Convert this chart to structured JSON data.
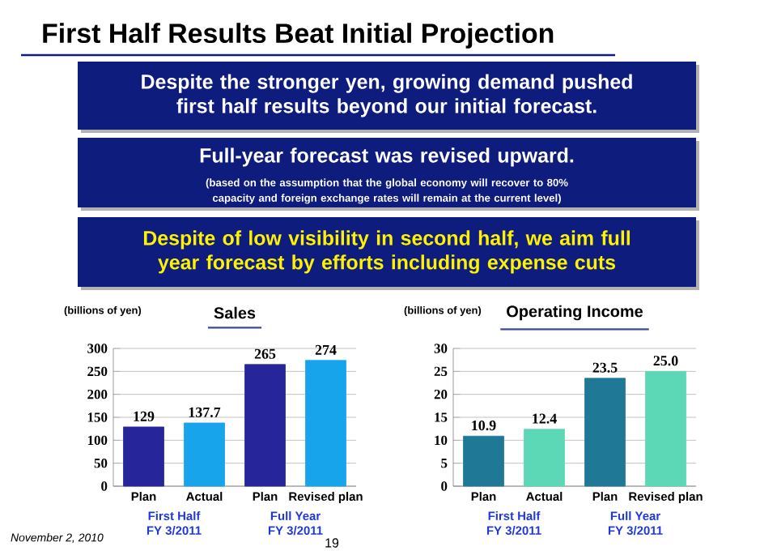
{
  "chart_data": [
    {
      "type": "other",
      "title": "First Half Results Beat Initial Projection",
      "annotations": [
        "Despite the stronger yen, growing demand pushed first half results beyond our initial forecast.",
        "Full-year forecast was revised upward.",
        "(based on the assumption that the global economy will recover to 80% capacity and foreign exchange rates will remain at the current level)",
        "Despite of low visibility in second half, we aim full year forecast by efforts including expense cuts",
        "November 2, 2010",
        "19"
      ]
    },
    {
      "type": "bar",
      "title": "Sales",
      "ylabel": "(billions of yen)",
      "categories": [
        "Plan",
        "Actual",
        "Plan",
        "Revised plan"
      ],
      "values": [
        129,
        137.7,
        265,
        274
      ],
      "colors": [
        "#26269a",
        "#18a4ea",
        "#26269a",
        "#18a4ea"
      ],
      "ylim": [
        0,
        300
      ],
      "yticks": [
        0,
        50,
        100,
        150,
        200,
        250,
        300
      ],
      "grid": "y",
      "data_labels": true,
      "annotations": [
        "First Half",
        "FY 3/2011",
        "Full Year",
        "FY 3/2011"
      ]
    },
    {
      "type": "bar",
      "title": "Operating Income",
      "ylabel": "(billions of yen)",
      "categories": [
        "Plan",
        "Actual",
        "Plan",
        "Revised plan"
      ],
      "values": [
        10.9,
        12.4,
        23.5,
        25.0
      ],
      "value_labels": [
        "10.9",
        "12.4",
        "23.5",
        "25.0"
      ],
      "colors": [
        "#1f7896",
        "#5cd8b6",
        "#1f7896",
        "#5cd8b6"
      ],
      "ylim": [
        0,
        30
      ],
      "yticks": [
        0,
        5,
        10,
        15,
        20,
        25,
        30
      ],
      "grid": "y",
      "annotations": [
        "First Half",
        "FY 3/2011",
        "Full Year",
        "FY 3/2011"
      ]
    }
  ]
}
